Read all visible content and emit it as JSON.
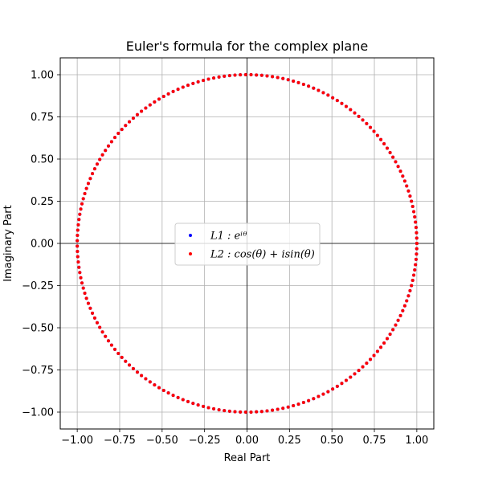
{
  "chart_data": {
    "type": "scatter",
    "title": "Euler's formula for the complex plane",
    "xlabel": "Real Part",
    "ylabel": "Imaginary Part",
    "xlim": [
      -1.1,
      1.1
    ],
    "ylim": [
      -1.1,
      1.1
    ],
    "xticks": [
      -1.0,
      -0.75,
      -0.5,
      -0.25,
      0.0,
      0.25,
      0.5,
      0.75,
      1.0
    ],
    "yticks": [
      -1.0,
      -0.75,
      -0.5,
      -0.25,
      0.0,
      0.25,
      0.5,
      0.75,
      1.0
    ],
    "xtick_labels": [
      "−1.00",
      "−0.75",
      "−0.50",
      "−0.25",
      "0.00",
      "0.25",
      "0.50",
      "0.75",
      "1.00"
    ],
    "ytick_labels": [
      "−1.00",
      "−0.75",
      "−0.50",
      "−0.25",
      "0.00",
      "0.25",
      "0.50",
      "0.75",
      "1.00"
    ],
    "grid": true,
    "zero_lines": true,
    "legend_position": "center",
    "series": [
      {
        "name": "L1: e^{iθ}",
        "legend_label": "𝐿1 : 𝑒ⁱᶿ",
        "color": "#0000ff",
        "marker": "dot",
        "theta_range": [
          0,
          6.2832
        ],
        "num_points": 200,
        "x": "cos(θ)",
        "y": "sin(θ)"
      },
      {
        "name": "L2: cos(θ) + i sin(θ)",
        "legend_label": "𝐿2 : cos(𝜃) + 𝑖sin(𝜃)",
        "color": "#ff0000",
        "marker": "dot",
        "theta_range": [
          0,
          6.2832
        ],
        "num_points": 200,
        "x": "cos(θ)",
        "y": "sin(θ)"
      }
    ]
  }
}
